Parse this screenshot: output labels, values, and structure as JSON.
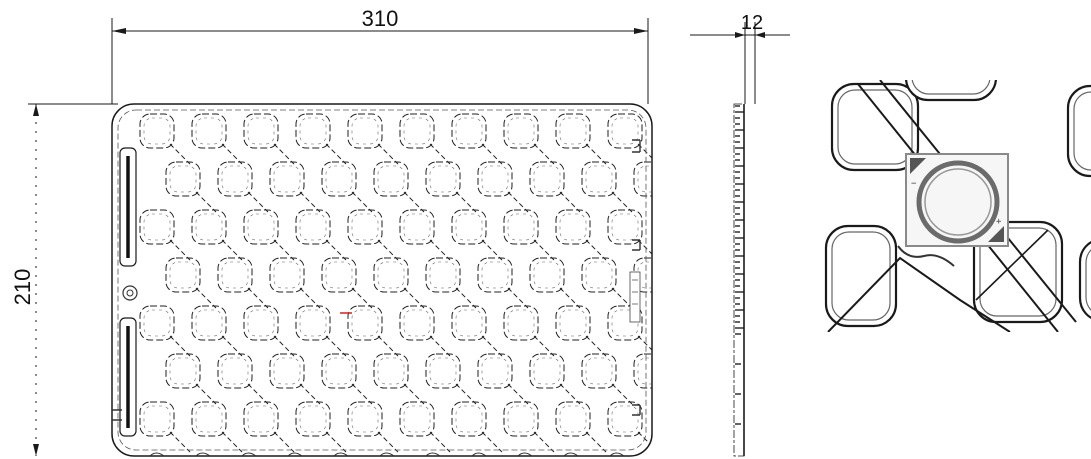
{
  "dimensions": {
    "width": "310",
    "height": "210",
    "thickness": "12"
  },
  "colors": {
    "line": "#1a1a1a",
    "outline_gray": "#555555",
    "bracket_gray": "#6b6b6b",
    "red_mark": "#d42020"
  },
  "icons": {
    "side_mark": "gear-emblem-icon"
  },
  "views": [
    "front-view",
    "side-view",
    "detail-view"
  ]
}
